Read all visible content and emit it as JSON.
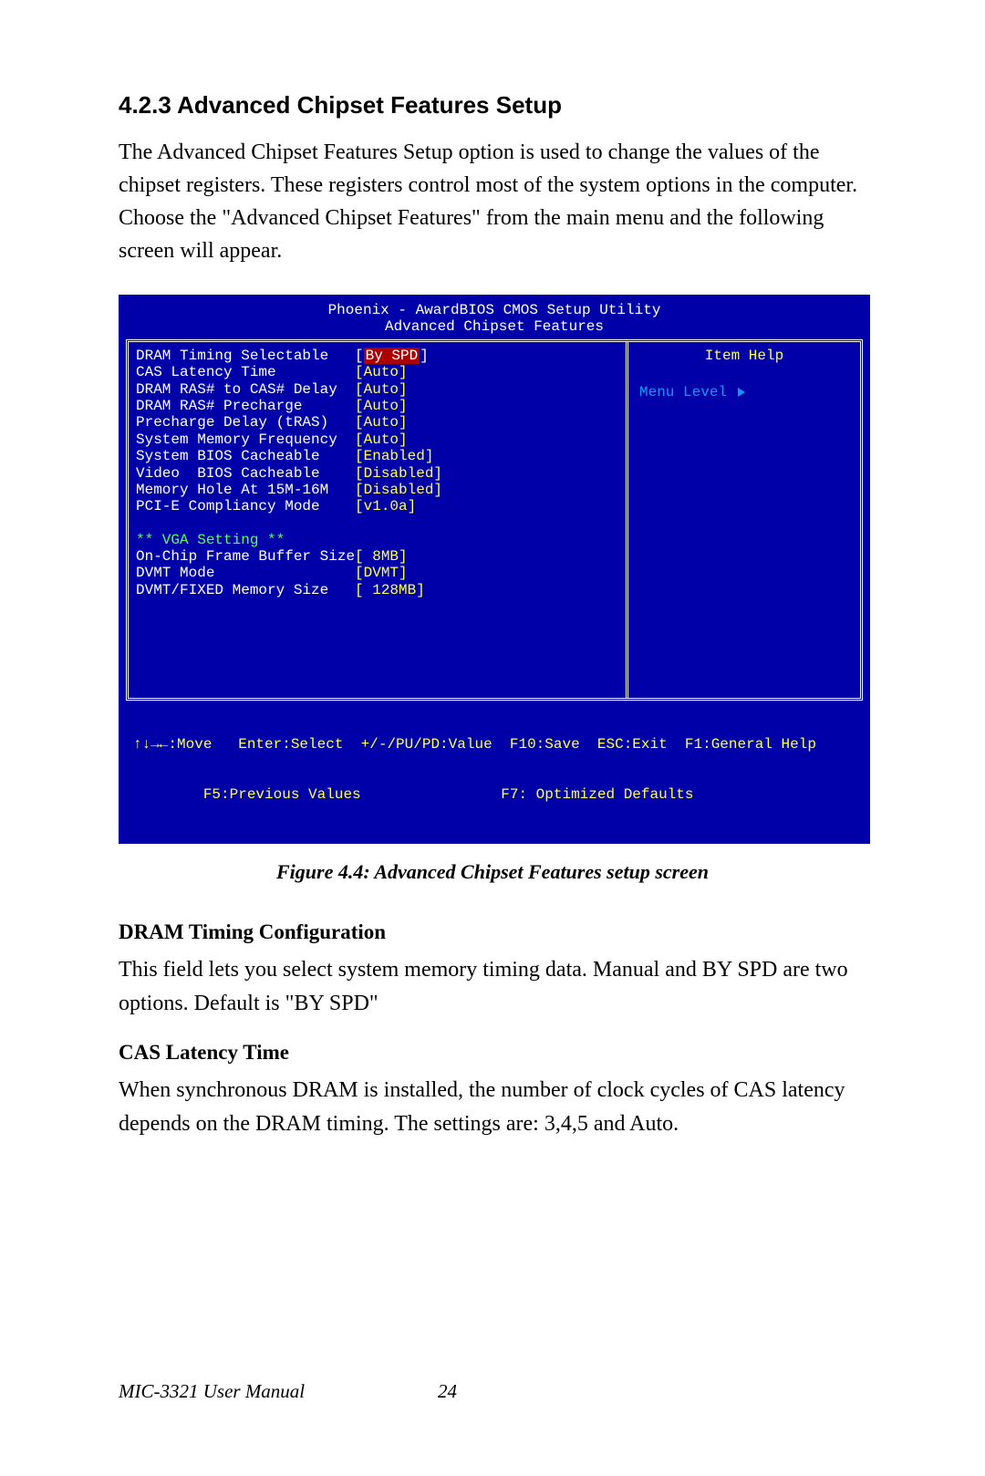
{
  "heading": "4.2.3 Advanced Chipset Features Setup",
  "intro": "The Advanced Chipset Features Setup option is used to change the values of the chipset registers. These registers control most of the system options in the computer. Choose the \"Advanced Chipset Features\" from the main menu and the following screen will appear.",
  "bios": {
    "title1": "Phoenix - AwardBIOS CMOS Setup Utility",
    "title2": "Advanced Chipset Features",
    "rows": [
      {
        "label": "DRAM Timing Selectable",
        "value": "By SPD",
        "highlight": true
      },
      {
        "label": "CAS Latency Time",
        "value": "Auto"
      },
      {
        "label": "DRAM RAS# to CAS# Delay",
        "value": "Auto"
      },
      {
        "label": "DRAM RAS# Precharge",
        "value": "Auto"
      },
      {
        "label": "Precharge Delay (tRAS)",
        "value": "Auto"
      },
      {
        "label": "System Memory Frequency",
        "value": "Auto"
      },
      {
        "label": "System BIOS Cacheable",
        "value": "Enabled"
      },
      {
        "label": "Video  BIOS Cacheable",
        "value": "Disabled"
      },
      {
        "label": "Memory Hole At 15M-16M",
        "value": "Disabled"
      },
      {
        "label": "PCI-E Compliancy Mode",
        "value": "v1.0a"
      }
    ],
    "vga_heading": "** VGA Setting **",
    "vga_rows": [
      {
        "label": "On-Chip Frame Buffer Size",
        "value": " 8MB"
      },
      {
        "label": "DVMT Mode",
        "value": "DVMT"
      },
      {
        "label": "DVMT/FIXED Memory Size",
        "value": " 128MB"
      }
    ],
    "help_title": "Item Help",
    "menu_level": "Menu Level",
    "footer1": "↑↓→←:Move   Enter:Select  +/-/PU/PD:Value  F10:Save  ESC:Exit  F1:General Help",
    "footer2": "        F5:Previous Values                F7: Optimized Defaults"
  },
  "figure_caption": "Figure 4.4: Advanced Chipset Features setup screen",
  "sections": [
    {
      "title": "DRAM Timing Configuration",
      "text": "This field lets you select system memory timing data. Manual and BY SPD are two options. Default is \"BY SPD\""
    },
    {
      "title": "CAS Latency Time",
      "text": "When synchronous DRAM is installed, the number of clock cycles of CAS latency depends on the DRAM timing. The settings are: 3,4,5 and Auto."
    }
  ],
  "footer_manual": "MIC-3321 User Manual",
  "page_number": "24",
  "colors": {
    "bios_bg": "#0000a8",
    "bios_yellow": "#ffff55",
    "bios_white": "#ffffff",
    "bios_highlight_bg": "#aa0000",
    "bios_green": "#55ff55",
    "bios_blue_text": "#1098f7"
  }
}
